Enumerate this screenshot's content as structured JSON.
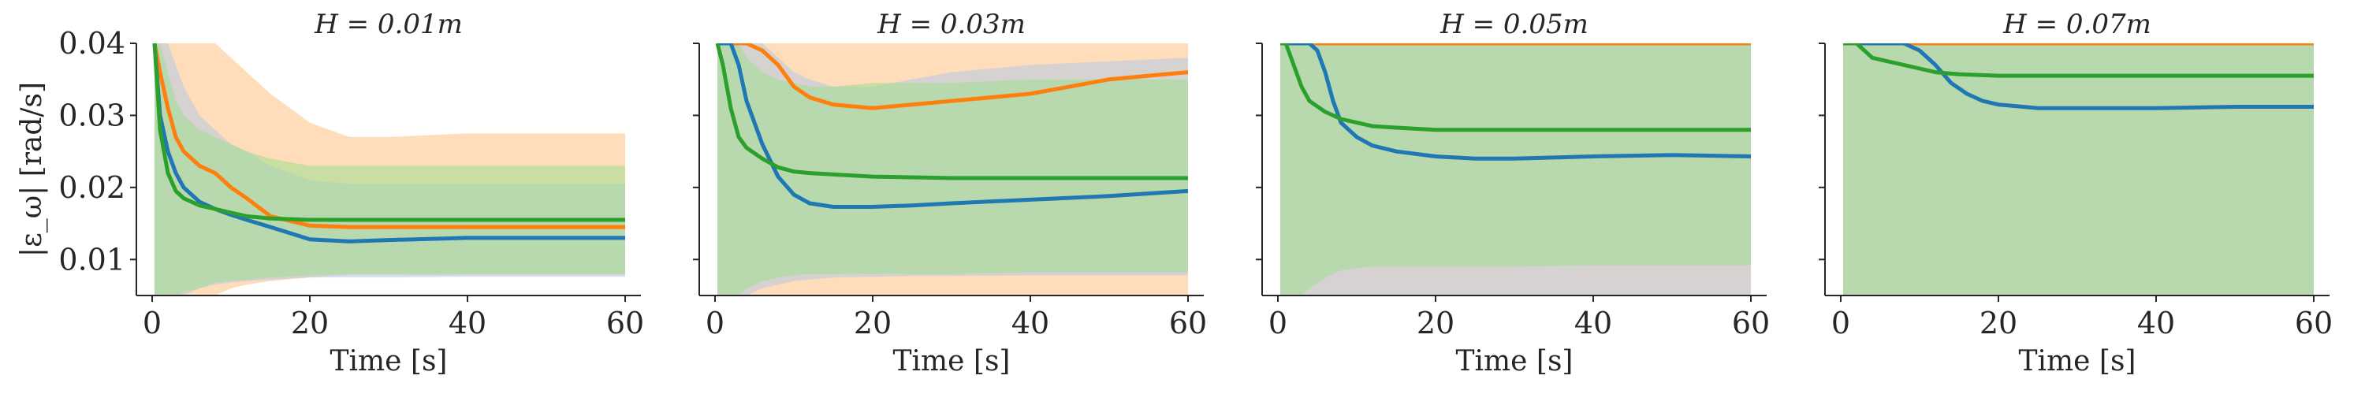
{
  "chart_data": [
    {
      "type": "line",
      "title": "H = 0.01m",
      "xlabel": "Time [s]",
      "ylabel": "|ε_ω| [rad/s]",
      "xlim": [
        -2,
        62
      ],
      "ylim": [
        0.005,
        0.04
      ],
      "xticks": [
        0,
        20,
        40,
        60
      ],
      "yticks": [
        0.01,
        0.02,
        0.03,
        0.04
      ],
      "yticklabels": [
        "0.01",
        "0.02",
        "0.03",
        "0.04"
      ],
      "grid": false,
      "series": [
        {
          "color": "#ff7f0e",
          "band_color": "#ffbb78",
          "x": [
            0.3,
            1,
            2,
            3,
            4,
            6,
            8,
            10,
            12,
            15,
            20,
            25,
            30,
            40,
            50,
            60
          ],
          "y": [
            0.04,
            0.036,
            0.031,
            0.027,
            0.025,
            0.023,
            0.022,
            0.02,
            0.0185,
            0.016,
            0.0147,
            0.0145,
            0.0145,
            0.0145,
            0.0145,
            0.0145
          ],
          "lower": [
            0.005,
            0.005,
            0.005,
            0.005,
            0.005,
            0.005,
            0.005,
            0.006,
            0.0065,
            0.007,
            0.0075,
            0.0078,
            0.0078,
            0.0078,
            0.0078,
            0.0078
          ],
          "upper": [
            0.04,
            0.04,
            0.04,
            0.04,
            0.04,
            0.04,
            0.04,
            0.038,
            0.036,
            0.033,
            0.029,
            0.027,
            0.027,
            0.0275,
            0.0275,
            0.0275
          ]
        },
        {
          "color": "#1f77b4",
          "band_color": "#aec7e8",
          "x": [
            0.3,
            1,
            2,
            3,
            4,
            6,
            8,
            10,
            12,
            15,
            20,
            25,
            30,
            40,
            50,
            60
          ],
          "y": [
            0.04,
            0.03,
            0.025,
            0.022,
            0.02,
            0.018,
            0.017,
            0.0162,
            0.0155,
            0.0145,
            0.0128,
            0.0125,
            0.0127,
            0.013,
            0.013,
            0.013
          ],
          "lower": [
            0.005,
            0.005,
            0.005,
            0.005,
            0.005,
            0.006,
            0.0065,
            0.0068,
            0.007,
            0.0072,
            0.0075,
            0.0075,
            0.0075,
            0.0076,
            0.0076,
            0.0076
          ],
          "upper": [
            0.04,
            0.04,
            0.04,
            0.037,
            0.034,
            0.03,
            0.028,
            0.026,
            0.025,
            0.023,
            0.021,
            0.0205,
            0.0205,
            0.0205,
            0.0205,
            0.0205
          ]
        },
        {
          "color": "#2ca02c",
          "band_color": "#98df8a",
          "x": [
            0.3,
            1,
            2,
            3,
            4,
            6,
            8,
            10,
            12,
            15,
            20,
            25,
            30,
            40,
            50,
            60
          ],
          "y": [
            0.04,
            0.028,
            0.022,
            0.0195,
            0.0185,
            0.0175,
            0.017,
            0.0165,
            0.016,
            0.0157,
            0.0155,
            0.0155,
            0.0155,
            0.0155,
            0.0155,
            0.0155
          ],
          "lower": [
            0.005,
            0.005,
            0.005,
            0.005,
            0.0055,
            0.006,
            0.0068,
            0.007,
            0.0072,
            0.0075,
            0.0078,
            0.008,
            0.008,
            0.008,
            0.008,
            0.008
          ],
          "upper": [
            0.04,
            0.04,
            0.036,
            0.032,
            0.03,
            0.028,
            0.027,
            0.026,
            0.025,
            0.024,
            0.023,
            0.023,
            0.023,
            0.023,
            0.023,
            0.023
          ]
        }
      ]
    },
    {
      "type": "line",
      "title": "H = 0.03m",
      "xlabel": "Time [s]",
      "ylabel": "",
      "xlim": [
        -2,
        62
      ],
      "ylim": [
        0.005,
        0.04
      ],
      "xticks": [
        0,
        20,
        40,
        60
      ],
      "yticks": [
        0.01,
        0.02,
        0.03,
        0.04
      ],
      "yticklabels": [],
      "grid": false,
      "series": [
        {
          "color": "#ff7f0e",
          "band_color": "#ffbb78",
          "x": [
            0.3,
            2,
            4,
            6,
            8,
            10,
            12,
            15,
            20,
            25,
            30,
            35,
            40,
            45,
            50,
            55,
            60
          ],
          "y": [
            0.04,
            0.04,
            0.04,
            0.039,
            0.037,
            0.034,
            0.0325,
            0.0315,
            0.031,
            0.0315,
            0.032,
            0.0325,
            0.033,
            0.034,
            0.035,
            0.0355,
            0.036
          ],
          "lower": [
            0.005,
            0.005,
            0.005,
            0.005,
            0.005,
            0.005,
            0.005,
            0.005,
            0.005,
            0.005,
            0.005,
            0.005,
            0.005,
            0.005,
            0.005,
            0.005,
            0.005
          ],
          "upper": [
            0.04,
            0.04,
            0.04,
            0.04,
            0.04,
            0.04,
            0.04,
            0.04,
            0.04,
            0.04,
            0.04,
            0.04,
            0.04,
            0.04,
            0.04,
            0.04,
            0.04
          ]
        },
        {
          "color": "#1f77b4",
          "band_color": "#aec7e8",
          "x": [
            0.3,
            2,
            3,
            4,
            6,
            8,
            10,
            12,
            15,
            20,
            25,
            30,
            40,
            50,
            60
          ],
          "y": [
            0.04,
            0.04,
            0.037,
            0.032,
            0.026,
            0.0215,
            0.019,
            0.0178,
            0.0173,
            0.0173,
            0.0175,
            0.0178,
            0.0183,
            0.0188,
            0.0195
          ],
          "lower": [
            0.005,
            0.005,
            0.005,
            0.005,
            0.006,
            0.0065,
            0.007,
            0.0072,
            0.0075,
            0.0076,
            0.0077,
            0.0077,
            0.0078,
            0.0078,
            0.0078
          ],
          "upper": [
            0.04,
            0.04,
            0.04,
            0.04,
            0.04,
            0.038,
            0.036,
            0.035,
            0.034,
            0.034,
            0.035,
            0.036,
            0.037,
            0.0375,
            0.038
          ]
        },
        {
          "color": "#2ca02c",
          "band_color": "#98df8a",
          "x": [
            0.3,
            1,
            2,
            3,
            4,
            6,
            8,
            10,
            12,
            15,
            20,
            30,
            40,
            50,
            60
          ],
          "y": [
            0.04,
            0.037,
            0.031,
            0.027,
            0.0255,
            0.024,
            0.0228,
            0.0222,
            0.022,
            0.0218,
            0.0215,
            0.0213,
            0.0213,
            0.0213,
            0.0213
          ],
          "lower": [
            0.005,
            0.005,
            0.005,
            0.005,
            0.006,
            0.007,
            0.0075,
            0.0078,
            0.008,
            0.008,
            0.008,
            0.008,
            0.0082,
            0.0082,
            0.0082
          ],
          "upper": [
            0.04,
            0.04,
            0.04,
            0.04,
            0.038,
            0.036,
            0.035,
            0.0345,
            0.034,
            0.034,
            0.0345,
            0.0345,
            0.035,
            0.035,
            0.035
          ]
        }
      ]
    },
    {
      "type": "line",
      "title": "H = 0.05m",
      "xlabel": "Time [s]",
      "ylabel": "",
      "xlim": [
        -2,
        62
      ],
      "ylim": [
        0.005,
        0.04
      ],
      "xticks": [
        0,
        20,
        40,
        60
      ],
      "yticks": [
        0.01,
        0.02,
        0.03,
        0.04
      ],
      "yticklabels": [],
      "grid": false,
      "series": [
        {
          "color": "#ff7f0e",
          "band_color": "#ffbb78",
          "x": [
            0.3,
            10,
            20,
            30,
            40,
            50,
            60
          ],
          "y": [
            0.04,
            0.04,
            0.04,
            0.04,
            0.04,
            0.04,
            0.04
          ],
          "lower": [
            0.005,
            0.005,
            0.005,
            0.005,
            0.005,
            0.005,
            0.005
          ],
          "upper": [
            0.04,
            0.04,
            0.04,
            0.04,
            0.04,
            0.04,
            0.04
          ]
        },
        {
          "color": "#1f77b4",
          "band_color": "#aec7e8",
          "x": [
            0.3,
            2,
            4,
            5,
            6,
            7,
            8,
            10,
            12,
            15,
            20,
            25,
            30,
            40,
            50,
            60
          ],
          "y": [
            0.04,
            0.04,
            0.04,
            0.039,
            0.036,
            0.032,
            0.029,
            0.027,
            0.0258,
            0.025,
            0.0243,
            0.024,
            0.024,
            0.0243,
            0.0245,
            0.0243
          ],
          "lower": [
            0.005,
            0.005,
            0.005,
            0.005,
            0.005,
            0.005,
            0.005,
            0.005,
            0.005,
            0.005,
            0.005,
            0.005,
            0.005,
            0.005,
            0.005,
            0.005
          ],
          "upper": [
            0.04,
            0.04,
            0.04,
            0.04,
            0.04,
            0.04,
            0.04,
            0.04,
            0.04,
            0.04,
            0.04,
            0.04,
            0.04,
            0.04,
            0.04,
            0.04
          ]
        },
        {
          "color": "#2ca02c",
          "band_color": "#98df8a",
          "x": [
            0.3,
            1,
            2,
            3,
            4,
            6,
            8,
            10,
            12,
            15,
            20,
            30,
            40,
            50,
            60
          ],
          "y": [
            0.04,
            0.04,
            0.037,
            0.034,
            0.032,
            0.0305,
            0.0295,
            0.029,
            0.0285,
            0.0283,
            0.028,
            0.028,
            0.028,
            0.028,
            0.028
          ],
          "lower": [
            0.005,
            0.005,
            0.005,
            0.005,
            0.006,
            0.0075,
            0.0085,
            0.0088,
            0.009,
            0.009,
            0.009,
            0.009,
            0.0092,
            0.0092,
            0.0092
          ],
          "upper": [
            0.04,
            0.04,
            0.04,
            0.04,
            0.04,
            0.04,
            0.04,
            0.04,
            0.04,
            0.04,
            0.04,
            0.04,
            0.04,
            0.04,
            0.04
          ]
        }
      ]
    },
    {
      "type": "line",
      "title": "H = 0.07m",
      "xlabel": "Time [s]",
      "ylabel": "",
      "xlim": [
        -2,
        62
      ],
      "ylim": [
        0.005,
        0.04
      ],
      "xticks": [
        0,
        20,
        40,
        60
      ],
      "yticks": [
        0.01,
        0.02,
        0.03,
        0.04
      ],
      "yticklabels": [],
      "grid": false,
      "series": [
        {
          "color": "#ff7f0e",
          "band_color": "#ffbb78",
          "x": [
            0.3,
            10,
            20,
            30,
            40,
            50,
            60
          ],
          "y": [
            0.04,
            0.04,
            0.04,
            0.04,
            0.04,
            0.04,
            0.04
          ],
          "lower": [
            0.005,
            0.005,
            0.005,
            0.005,
            0.005,
            0.005,
            0.005
          ],
          "upper": [
            0.04,
            0.04,
            0.04,
            0.04,
            0.04,
            0.04,
            0.04
          ]
        },
        {
          "color": "#1f77b4",
          "band_color": "#aec7e8",
          "x": [
            0.3,
            4,
            8,
            10,
            12,
            14,
            16,
            18,
            20,
            25,
            30,
            40,
            50,
            60
          ],
          "y": [
            0.04,
            0.04,
            0.04,
            0.039,
            0.037,
            0.0345,
            0.033,
            0.032,
            0.0315,
            0.031,
            0.031,
            0.031,
            0.0312,
            0.0312
          ],
          "lower": [
            0.005,
            0.005,
            0.005,
            0.005,
            0.005,
            0.005,
            0.005,
            0.005,
            0.005,
            0.005,
            0.005,
            0.005,
            0.005,
            0.005
          ],
          "upper": [
            0.04,
            0.04,
            0.04,
            0.04,
            0.04,
            0.04,
            0.04,
            0.04,
            0.04,
            0.04,
            0.04,
            0.04,
            0.04,
            0.04
          ]
        },
        {
          "color": "#2ca02c",
          "band_color": "#98df8a",
          "x": [
            0.3,
            2,
            3,
            4,
            6,
            8,
            10,
            12,
            15,
            20,
            30,
            40,
            50,
            60
          ],
          "y": [
            0.04,
            0.04,
            0.039,
            0.038,
            0.0375,
            0.037,
            0.0365,
            0.036,
            0.0357,
            0.0355,
            0.0355,
            0.0355,
            0.0355,
            0.0355
          ],
          "lower": [
            0.005,
            0.005,
            0.005,
            0.005,
            0.005,
            0.005,
            0.005,
            0.005,
            0.005,
            0.005,
            0.005,
            0.005,
            0.005,
            0.005
          ],
          "upper": [
            0.04,
            0.04,
            0.04,
            0.04,
            0.04,
            0.04,
            0.04,
            0.04,
            0.04,
            0.04,
            0.04,
            0.04,
            0.04,
            0.04
          ]
        }
      ]
    }
  ]
}
